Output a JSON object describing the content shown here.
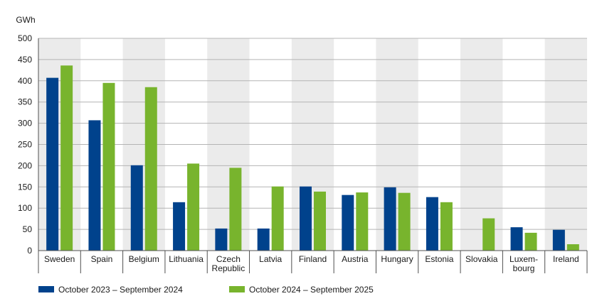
{
  "chart_data": {
    "type": "bar",
    "ylabel": "GWh",
    "ylim": [
      0,
      500
    ],
    "yticks": [
      0,
      50,
      100,
      150,
      200,
      250,
      300,
      350,
      400,
      450,
      500
    ],
    "grid": true,
    "legend_position": "bottom-left",
    "categories": [
      "Sweden",
      "Spain",
      "Belgium",
      "Lithuania",
      "Czech Republic",
      "Latvia",
      "Finland",
      "Austria",
      "Hungary",
      "Estonia",
      "Slovakia",
      "Luxembourg",
      "Ireland"
    ],
    "category_labels": [
      [
        "Sweden"
      ],
      [
        "Spain"
      ],
      [
        "Belgium"
      ],
      [
        "Lithuania"
      ],
      [
        "Czech",
        "Republic"
      ],
      [
        "Latvia"
      ],
      [
        "Finland"
      ],
      [
        "Austria"
      ],
      [
        "Hungary"
      ],
      [
        "Estonia"
      ],
      [
        "Slovakia"
      ],
      [
        "Luxem-",
        "bourg"
      ],
      [
        "Ireland"
      ]
    ],
    "series": [
      {
        "name": "October 2023 – September 2024",
        "color": "#00428c",
        "values": [
          407,
          307,
          201,
          114,
          52,
          52,
          151,
          131,
          149,
          126,
          null,
          55,
          49
        ]
      },
      {
        "name": "October 2024 – September 2025",
        "color": "#78b42d",
        "values": [
          436,
          395,
          385,
          205,
          195,
          151,
          139,
          137,
          136,
          114,
          76,
          42,
          15
        ]
      }
    ],
    "colors": {
      "band": "#ebebeb",
      "grid": "#b4b4b4",
      "axis": "#505050"
    }
  }
}
